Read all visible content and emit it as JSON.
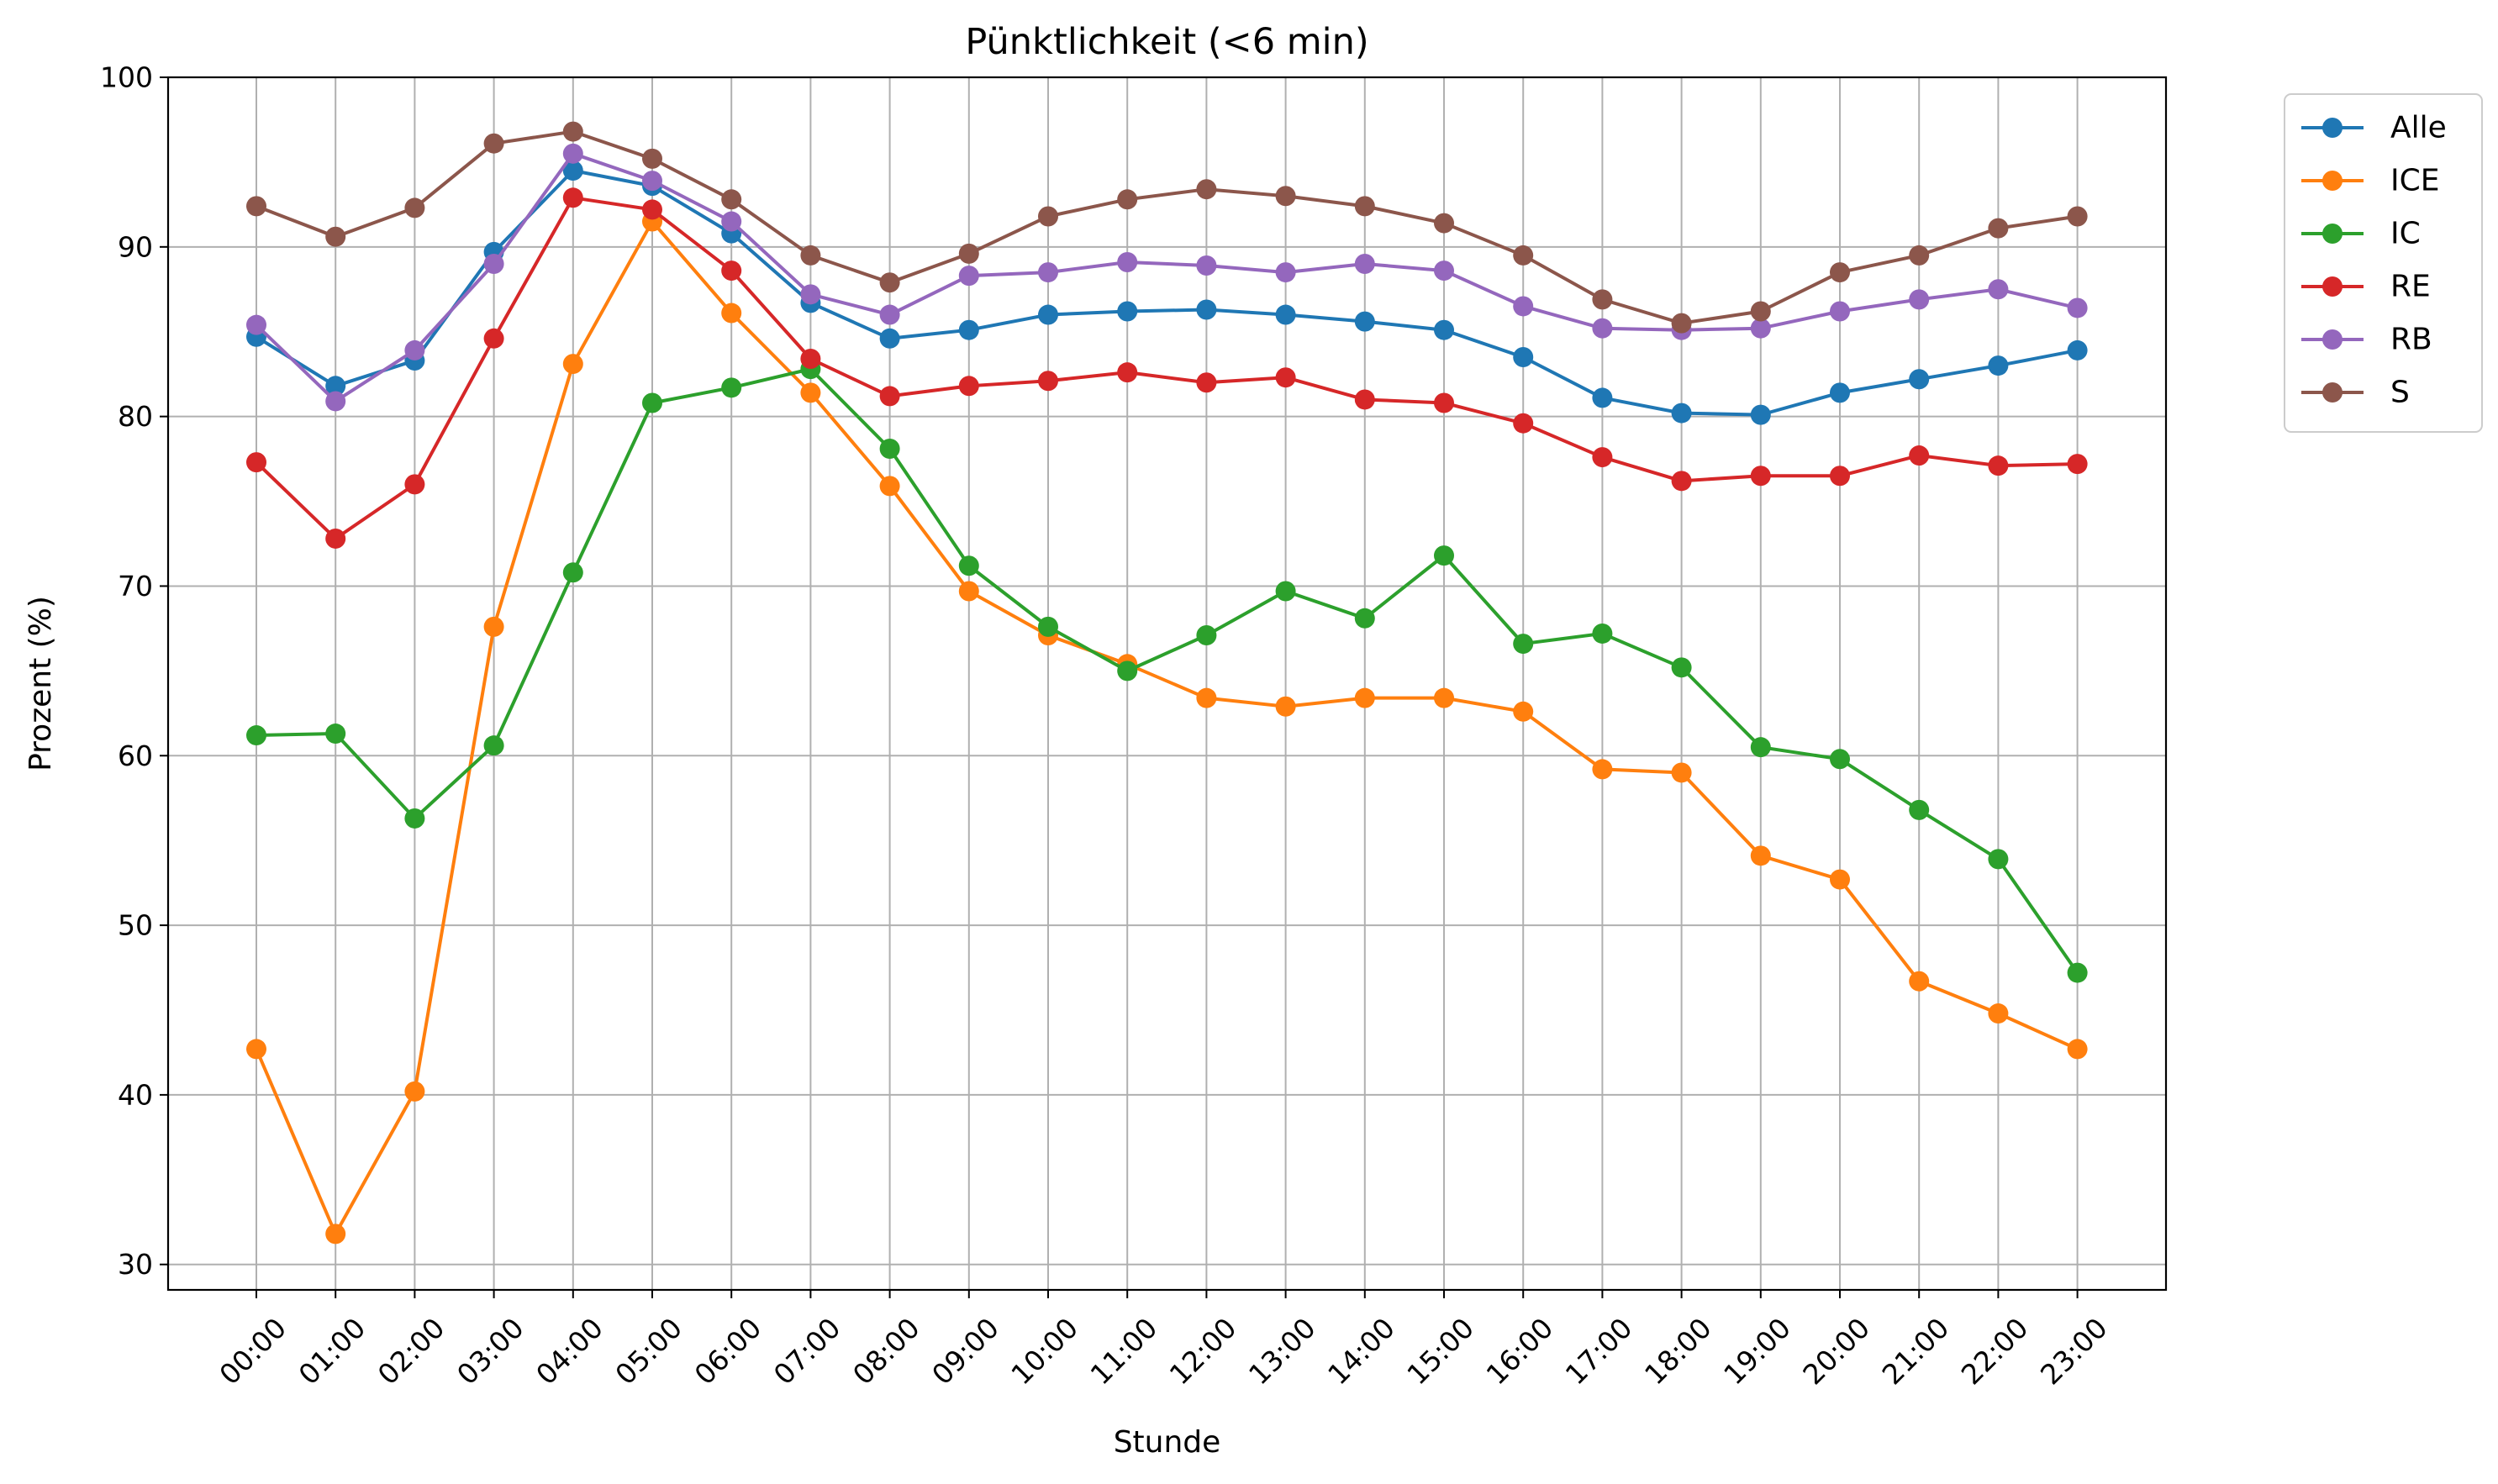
{
  "chart_data": {
    "type": "line",
    "title": "Pünktlichkeit (<6 min)",
    "xlabel": "Stunde",
    "ylabel": "Prozent (%)",
    "ylim": [
      28.5,
      100
    ],
    "yticks": [
      30,
      40,
      50,
      60,
      70,
      80,
      90,
      100
    ],
    "grid": true,
    "legend_position": "outside-top-right",
    "categories": [
      "00:00",
      "01:00",
      "02:00",
      "03:00",
      "04:00",
      "05:00",
      "06:00",
      "07:00",
      "08:00",
      "09:00",
      "10:00",
      "11:00",
      "12:00",
      "13:00",
      "14:00",
      "15:00",
      "16:00",
      "17:00",
      "18:00",
      "19:00",
      "20:00",
      "21:00",
      "22:00",
      "23:00"
    ],
    "series": [
      {
        "name": "Alle",
        "color": "#1f77b4",
        "values": [
          84.7,
          81.8,
          83.3,
          89.7,
          94.5,
          93.6,
          90.8,
          86.7,
          84.6,
          85.1,
          86.0,
          86.2,
          86.3,
          86.0,
          85.6,
          85.1,
          83.5,
          81.1,
          80.2,
          80.1,
          81.4,
          82.2,
          83.0,
          83.9
        ]
      },
      {
        "name": "ICE",
        "color": "#ff7f0e",
        "values": [
          42.7,
          31.8,
          40.2,
          67.6,
          83.1,
          91.5,
          86.1,
          81.4,
          75.9,
          69.7,
          67.1,
          65.4,
          63.4,
          62.9,
          63.4,
          63.4,
          62.6,
          59.2,
          59.0,
          54.1,
          52.7,
          46.7,
          44.8,
          42.7
        ]
      },
      {
        "name": "IC",
        "color": "#2ca02c",
        "values": [
          61.2,
          61.3,
          56.3,
          60.6,
          70.8,
          80.8,
          81.7,
          82.8,
          78.1,
          71.2,
          67.6,
          65.0,
          67.1,
          69.7,
          68.1,
          71.8,
          66.6,
          67.2,
          65.2,
          60.5,
          59.8,
          56.8,
          53.9,
          47.2
        ]
      },
      {
        "name": "RE",
        "color": "#d62728",
        "values": [
          77.3,
          72.8,
          76.0,
          84.6,
          92.9,
          92.2,
          88.6,
          83.4,
          81.2,
          81.8,
          82.1,
          82.6,
          82.0,
          82.3,
          81.0,
          80.8,
          79.6,
          77.6,
          76.2,
          76.5,
          76.5,
          77.7,
          77.1,
          77.2
        ]
      },
      {
        "name": "RB",
        "color": "#9467bd",
        "values": [
          85.4,
          80.9,
          83.9,
          89.0,
          95.5,
          93.9,
          91.5,
          87.2,
          86.0,
          88.3,
          88.5,
          89.1,
          88.9,
          88.5,
          89.0,
          88.6,
          86.5,
          85.2,
          85.1,
          85.2,
          86.2,
          86.9,
          87.5,
          86.4
        ]
      },
      {
        "name": "S",
        "color": "#8c564b",
        "values": [
          92.4,
          90.6,
          92.3,
          96.1,
          96.8,
          95.2,
          92.8,
          89.5,
          87.9,
          89.6,
          91.8,
          92.8,
          93.4,
          93.0,
          92.4,
          91.4,
          89.5,
          86.9,
          85.5,
          86.2,
          88.5,
          89.5,
          91.1,
          91.8
        ]
      }
    ]
  }
}
